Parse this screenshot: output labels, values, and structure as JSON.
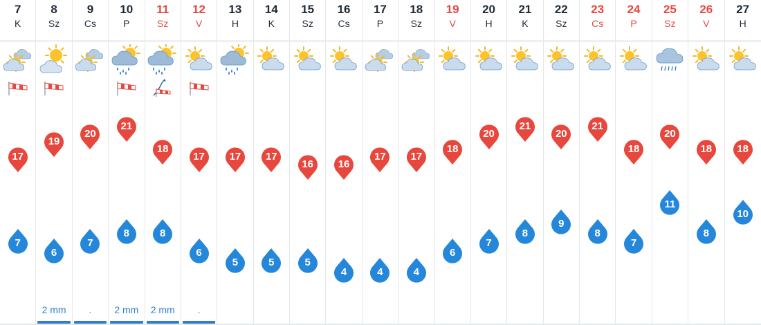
{
  "colors": {
    "high": "#e8473d",
    "low": "#2587d9",
    "weekend": "#e8473d",
    "precip": "#2d7dd2"
  },
  "days": [
    {
      "num": "7",
      "name": "K",
      "weekend": false,
      "icon": "sun-cloud-icon",
      "wind": true,
      "high": "17",
      "low": "7",
      "precip": ""
    },
    {
      "num": "8",
      "name": "Sz",
      "weekend": false,
      "icon": "sunny-cloud-icon",
      "wind": true,
      "high": "19",
      "low": "6",
      "precip": "2 mm"
    },
    {
      "num": "9",
      "name": "Cs",
      "weekend": false,
      "icon": "sun-cloud-icon",
      "wind": false,
      "high": "20",
      "low": "7",
      "precip": "."
    },
    {
      "num": "10",
      "name": "P",
      "weekend": false,
      "icon": "sun-rain-icon",
      "wind": true,
      "high": "21",
      "low": "8",
      "precip": "2 mm"
    },
    {
      "num": "11",
      "name": "Sz",
      "weekend": true,
      "icon": "sun-rain-icon",
      "wind": "gust",
      "high": "18",
      "low": "8",
      "precip": "2 mm"
    },
    {
      "num": "12",
      "name": "V",
      "weekend": true,
      "icon": "partly-sunny-icon",
      "wind": true,
      "high": "17",
      "low": "6",
      "precip": "."
    },
    {
      "num": "13",
      "name": "H",
      "weekend": false,
      "icon": "sun-rain-icon",
      "wind": false,
      "high": "17",
      "low": "5",
      "precip": ""
    },
    {
      "num": "14",
      "name": "K",
      "weekend": false,
      "icon": "partly-sunny-icon",
      "wind": false,
      "high": "17",
      "low": "5",
      "precip": ""
    },
    {
      "num": "15",
      "name": "Sz",
      "weekend": false,
      "icon": "partly-sunny-icon",
      "wind": false,
      "high": "16",
      "low": "5",
      "precip": ""
    },
    {
      "num": "16",
      "name": "Cs",
      "weekend": false,
      "icon": "partly-sunny-icon",
      "wind": false,
      "high": "16",
      "low": "4",
      "precip": ""
    },
    {
      "num": "17",
      "name": "P",
      "weekend": false,
      "icon": "sun-cloud-icon",
      "wind": false,
      "high": "17",
      "low": "4",
      "precip": ""
    },
    {
      "num": "18",
      "name": "Sz",
      "weekend": false,
      "icon": "sun-cloud-icon",
      "wind": false,
      "high": "17",
      "low": "4",
      "precip": ""
    },
    {
      "num": "19",
      "name": "V",
      "weekend": true,
      "icon": "partly-sunny-icon",
      "wind": false,
      "high": "18",
      "low": "6",
      "precip": ""
    },
    {
      "num": "20",
      "name": "H",
      "weekend": false,
      "icon": "partly-sunny-icon",
      "wind": false,
      "high": "20",
      "low": "7",
      "precip": ""
    },
    {
      "num": "21",
      "name": "K",
      "weekend": false,
      "icon": "partly-sunny-icon",
      "wind": false,
      "high": "21",
      "low": "8",
      "precip": ""
    },
    {
      "num": "22",
      "name": "Sz",
      "weekend": false,
      "icon": "partly-sunny-icon",
      "wind": false,
      "high": "20",
      "low": "9",
      "precip": ""
    },
    {
      "num": "23",
      "name": "Cs",
      "weekend": true,
      "icon": "partly-sunny-icon",
      "wind": false,
      "high": "21",
      "low": "8",
      "precip": ""
    },
    {
      "num": "24",
      "name": "P",
      "weekend": true,
      "icon": "partly-sunny-icon",
      "wind": false,
      "high": "18",
      "low": "7",
      "precip": ""
    },
    {
      "num": "25",
      "name": "Sz",
      "weekend": true,
      "icon": "rain-cloud-icon",
      "wind": false,
      "high": "20",
      "low": "11",
      "precip": ""
    },
    {
      "num": "26",
      "name": "V",
      "weekend": true,
      "icon": "partly-sunny-icon",
      "wind": false,
      "high": "18",
      "low": "8",
      "precip": ""
    },
    {
      "num": "27",
      "name": "H",
      "weekend": false,
      "icon": "partly-sunny-icon",
      "wind": false,
      "high": "18",
      "low": "10",
      "precip": ""
    }
  ]
}
